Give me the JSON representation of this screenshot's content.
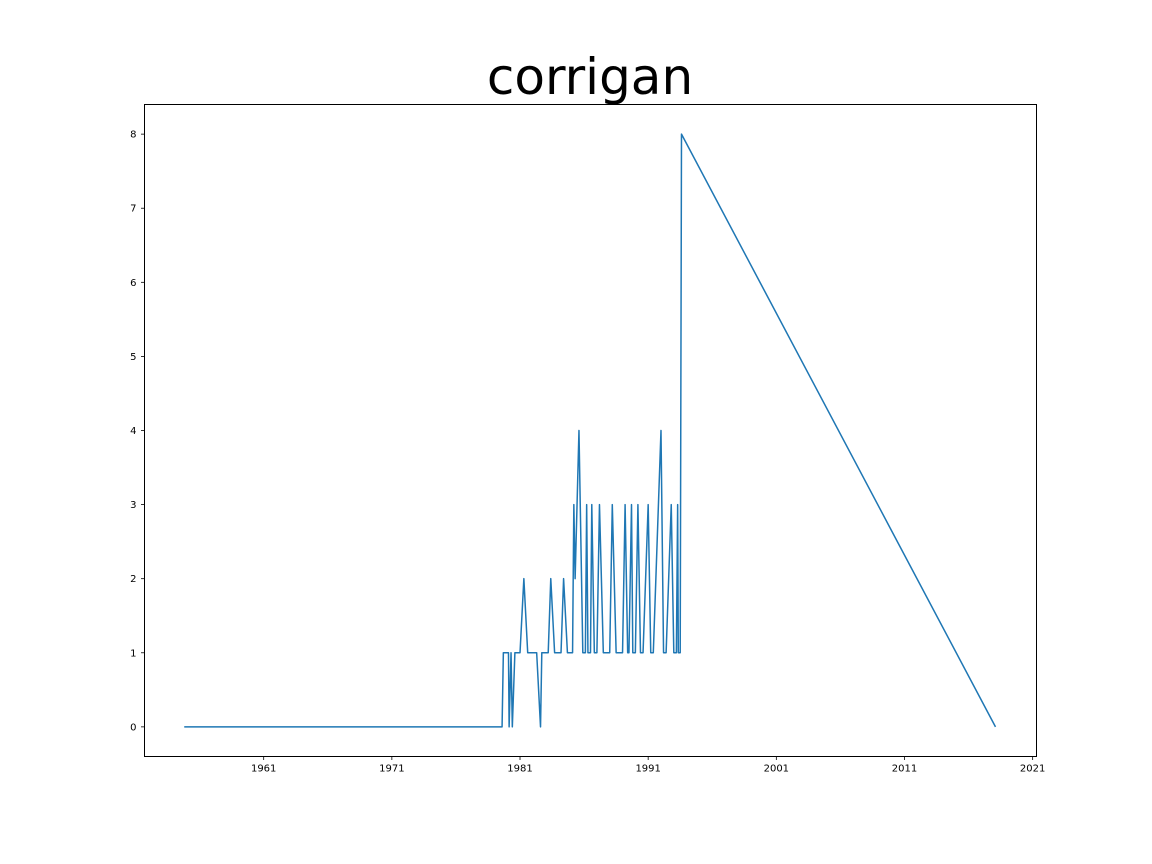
{
  "chart_data": {
    "type": "line",
    "title": "corrigan",
    "xlabel": "",
    "ylabel": "",
    "xlim": [
      1951.7,
      2021.3
    ],
    "ylim": [
      -0.4,
      8.4
    ],
    "xticks": [
      1961,
      1971,
      1981,
      1991,
      2001,
      2011,
      2021
    ],
    "xtick_labels": [
      "1961",
      "1971",
      "1981",
      "1991",
      "2001",
      "2011",
      "2021"
    ],
    "yticks": [
      0,
      1,
      2,
      3,
      4,
      5,
      6,
      7,
      8
    ],
    "ytick_labels": [
      "0",
      "1",
      "2",
      "3",
      "4",
      "5",
      "6",
      "7",
      "8"
    ],
    "grid": false,
    "series": [
      {
        "color": "#1f77b4",
        "x": [
          1954.8,
          1979.6,
          1979.7,
          1980.1,
          1980.15,
          1980.3,
          1980.4,
          1980.6,
          1981.0,
          1981.3,
          1981.6,
          1982.3,
          1982.6,
          1982.7,
          1983.2,
          1983.4,
          1983.7,
          1984.2,
          1984.4,
          1984.7,
          1985.1,
          1985.2,
          1985.3,
          1985.6,
          1985.9,
          1986.1,
          1986.2,
          1986.3,
          1986.5,
          1986.6,
          1986.8,
          1987.0,
          1987.2,
          1987.5,
          1988.0,
          1988.2,
          1988.5,
          1989.0,
          1989.2,
          1989.4,
          1989.5,
          1989.7,
          1989.8,
          1990.0,
          1990.2,
          1990.4,
          1990.6,
          1991.0,
          1991.2,
          1991.4,
          1992.0,
          1992.2,
          1992.4,
          1992.8,
          1993.0,
          1993.2,
          1993.3,
          1993.35,
          1993.5,
          1993.6,
          2018.1
        ],
        "y": [
          0,
          0,
          1,
          1,
          0,
          1,
          0,
          1,
          1,
          2,
          1,
          1,
          0,
          1,
          1,
          2,
          1,
          1,
          2,
          1,
          1,
          3,
          2,
          4,
          1,
          1,
          3,
          1,
          1,
          3,
          1,
          1,
          3,
          1,
          1,
          3,
          1,
          1,
          3,
          1,
          1,
          3,
          1,
          1,
          3,
          1,
          1,
          3,
          1,
          1,
          4,
          1,
          1,
          3,
          1,
          1,
          3,
          1,
          1,
          8,
          0
        ]
      }
    ]
  }
}
